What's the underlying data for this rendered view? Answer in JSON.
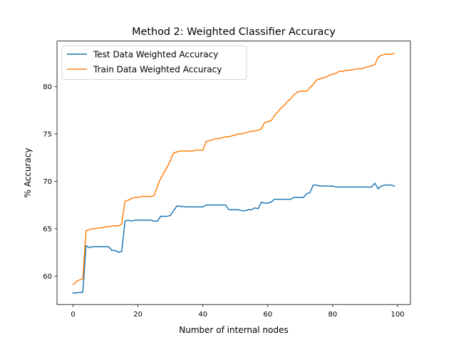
{
  "chart_data": {
    "type": "line",
    "title": "Method 2: Weighted Classifier Accuracy",
    "xlabel": "Number of internal nodes",
    "ylabel": "% Accuracy",
    "xlim": [
      -4.95,
      103.95
    ],
    "ylim": [
      57.0,
      84.8
    ],
    "xticks": [
      0,
      20,
      40,
      60,
      80,
      100
    ],
    "yticks": [
      60,
      65,
      70,
      75,
      80
    ],
    "grid": false,
    "legend_position": "upper-left",
    "series": [
      {
        "name": "Test Data Weighted Accuracy",
        "color": "#1f77b4",
        "x": [
          0,
          3,
          4,
          5,
          6,
          7,
          8,
          9,
          10,
          11,
          12,
          13,
          14,
          15,
          16,
          17,
          18,
          19,
          20,
          21,
          22,
          23,
          24,
          25,
          26,
          27,
          28,
          29,
          30,
          31,
          32,
          35,
          38,
          39,
          40,
          41,
          42,
          45,
          46,
          47,
          48,
          49,
          50,
          51,
          52,
          53,
          54,
          55,
          56,
          57,
          58,
          59,
          60,
          61,
          62,
          63,
          64,
          65,
          66,
          67,
          68,
          69,
          70,
          71,
          72,
          73,
          74,
          75,
          76,
          77,
          78,
          79,
          80,
          81,
          82,
          85,
          88,
          91,
          92,
          93,
          94,
          95,
          96,
          97,
          98,
          99
        ],
        "values": [
          58.2,
          58.3,
          63.2,
          63.0,
          63.1,
          63.1,
          63.1,
          63.1,
          63.1,
          63.1,
          62.7,
          62.7,
          62.5,
          62.6,
          65.8,
          65.9,
          65.8,
          65.9,
          65.9,
          65.9,
          65.9,
          65.9,
          65.9,
          65.8,
          65.8,
          66.3,
          66.3,
          66.3,
          66.4,
          66.9,
          67.4,
          67.3,
          67.3,
          67.3,
          67.3,
          67.5,
          67.5,
          67.5,
          67.5,
          67.5,
          67.0,
          67.0,
          67.0,
          67.0,
          66.9,
          66.9,
          67.0,
          67.0,
          67.2,
          67.1,
          67.8,
          67.7,
          67.7,
          67.8,
          68.1,
          68.1,
          68.1,
          68.1,
          68.1,
          68.1,
          68.3,
          68.3,
          68.3,
          68.3,
          68.7,
          68.8,
          69.6,
          69.6,
          69.5,
          69.5,
          69.5,
          69.5,
          69.5,
          69.4,
          69.4,
          69.4,
          69.4,
          69.4,
          69.4,
          69.8,
          69.2,
          69.5,
          69.6,
          69.6,
          69.6,
          69.5
        ]
      },
      {
        "name": "Train Data Weighted Accuracy",
        "color": "#ff7f0e",
        "x": [
          0,
          1,
          2,
          3,
          4,
          5,
          6,
          7,
          8,
          9,
          10,
          11,
          12,
          13,
          14,
          15,
          16,
          17,
          18,
          19,
          20,
          21,
          22,
          23,
          24,
          25,
          26,
          27,
          28,
          29,
          30,
          31,
          32,
          33,
          34,
          35,
          36,
          37,
          38,
          39,
          40,
          41,
          42,
          43,
          44,
          45,
          46,
          47,
          48,
          49,
          50,
          51,
          52,
          53,
          54,
          55,
          56,
          57,
          58,
          59,
          60,
          61,
          62,
          63,
          64,
          65,
          66,
          67,
          68,
          69,
          70,
          71,
          72,
          73,
          74,
          75,
          76,
          77,
          78,
          79,
          80,
          81,
          82,
          83,
          84,
          85,
          86,
          87,
          88,
          89,
          90,
          91,
          92,
          93,
          94,
          95,
          96,
          97,
          98,
          99
        ],
        "values": [
          59.1,
          59.4,
          59.6,
          59.7,
          64.8,
          64.9,
          65.0,
          65.0,
          65.1,
          65.1,
          65.2,
          65.2,
          65.3,
          65.3,
          65.3,
          65.5,
          67.9,
          68.0,
          68.2,
          68.3,
          68.3,
          68.4,
          68.4,
          68.4,
          68.4,
          68.5,
          69.5,
          70.3,
          70.9,
          71.5,
          72.2,
          73.0,
          73.1,
          73.2,
          73.2,
          73.2,
          73.2,
          73.2,
          73.3,
          73.3,
          73.3,
          74.2,
          74.3,
          74.4,
          74.5,
          74.5,
          74.6,
          74.7,
          74.7,
          74.8,
          74.9,
          75.0,
          75.0,
          75.1,
          75.2,
          75.3,
          75.3,
          75.4,
          75.5,
          76.2,
          76.3,
          76.4,
          76.9,
          77.3,
          77.7,
          78.0,
          78.4,
          78.7,
          79.1,
          79.4,
          79.5,
          79.5,
          79.5,
          79.9,
          80.2,
          80.7,
          80.8,
          80.9,
          81.0,
          81.2,
          81.3,
          81.4,
          81.6,
          81.6,
          81.7,
          81.7,
          81.8,
          81.8,
          81.9,
          81.9,
          82.0,
          82.1,
          82.2,
          82.3,
          83.1,
          83.3,
          83.4,
          83.4,
          83.4,
          83.5
        ]
      }
    ]
  }
}
